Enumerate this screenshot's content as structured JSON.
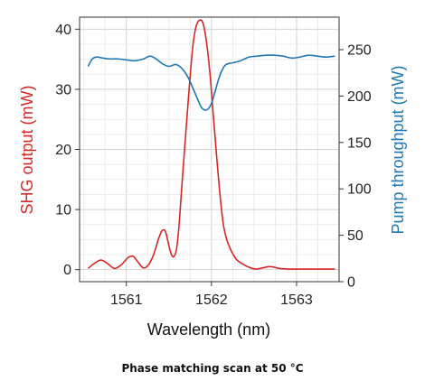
{
  "caption": "Phase matching scan at 50 °C",
  "chart_data": {
    "type": "line",
    "title": "",
    "xlabel": "Wavelength (nm)",
    "ylabel": "SHG output (mW)",
    "y2label": "Pump throughput (mW)",
    "xlim": [
      1560.45,
      1563.5
    ],
    "ylim": [
      -2,
      42
    ],
    "y2lim": [
      0,
      285
    ],
    "xticks": [
      1561,
      1562,
      1563
    ],
    "yticks": [
      0,
      10,
      20,
      30,
      40
    ],
    "y2ticks": [
      0,
      50,
      100,
      150,
      200,
      250
    ],
    "grid": true,
    "colors": {
      "shg": "#d62728",
      "pump": "#1f77b4"
    },
    "series": [
      {
        "name": "SHG output",
        "axis": "left",
        "x": [
          1560.55,
          1560.62,
          1560.7,
          1560.78,
          1560.86,
          1560.94,
          1561.02,
          1561.08,
          1561.14,
          1561.2,
          1561.26,
          1561.32,
          1561.38,
          1561.42,
          1561.46,
          1561.5,
          1561.53,
          1561.56,
          1561.59,
          1561.62,
          1561.66,
          1561.7,
          1561.74,
          1561.78,
          1561.82,
          1561.86,
          1561.9,
          1561.94,
          1561.98,
          1562.02,
          1562.06,
          1562.1,
          1562.14,
          1562.18,
          1562.22,
          1562.26,
          1562.3,
          1562.36,
          1562.44,
          1562.52,
          1562.6,
          1562.68,
          1562.74,
          1562.8,
          1562.9,
          1563.0,
          1563.2,
          1563.45
        ],
        "values": [
          0.2,
          1.0,
          1.6,
          1.0,
          0.2,
          0.8,
          2.0,
          2.2,
          1.2,
          0.3,
          0.8,
          2.5,
          5.2,
          6.5,
          6.3,
          4.0,
          2.5,
          2.2,
          3.5,
          7.5,
          15.5,
          23.0,
          30.5,
          37.0,
          40.5,
          41.5,
          41.0,
          38.0,
          33.0,
          26.0,
          19.0,
          12.5,
          7.5,
          5.0,
          3.5,
          2.4,
          1.6,
          1.0,
          0.4,
          0.1,
          0.3,
          0.5,
          0.4,
          0.2,
          0.1,
          0.1,
          0.1,
          0.1
        ]
      },
      {
        "name": "Pump throughput",
        "axis": "right",
        "x": [
          1560.55,
          1560.6,
          1560.65,
          1560.72,
          1560.8,
          1560.9,
          1561.0,
          1561.1,
          1561.2,
          1561.28,
          1561.35,
          1561.42,
          1561.5,
          1561.58,
          1561.65,
          1561.72,
          1561.78,
          1561.84,
          1561.88,
          1561.92,
          1561.96,
          1562.0,
          1562.04,
          1562.08,
          1562.12,
          1562.16,
          1562.2,
          1562.26,
          1562.34,
          1562.44,
          1562.54,
          1562.64,
          1562.74,
          1562.84,
          1562.94,
          1563.04,
          1563.14,
          1563.24,
          1563.34,
          1563.45
        ],
        "values": [
          232,
          240,
          242,
          241,
          240,
          240,
          239,
          238,
          240,
          243,
          240,
          235,
          232,
          234,
          230,
          221,
          209,
          196,
          188,
          185,
          186,
          192,
          204,
          217,
          227,
          233,
          235,
          236,
          238,
          242,
          243,
          244,
          244,
          243,
          241,
          242,
          244,
          243,
          242,
          243
        ]
      }
    ]
  }
}
